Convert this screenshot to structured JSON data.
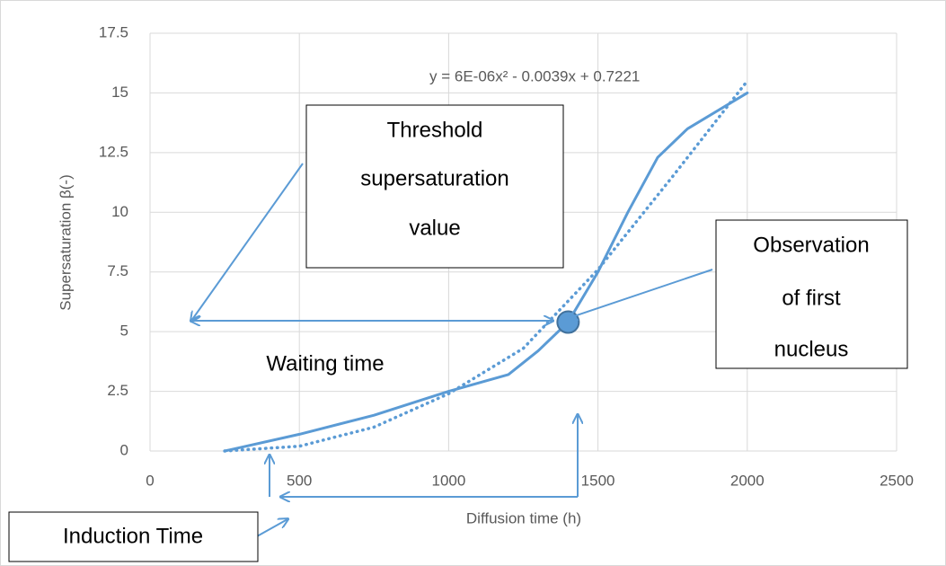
{
  "chart_data": {
    "type": "line",
    "xlabel": "Diffusion time (h)",
    "ylabel": "Supersaturation β(-)",
    "xlim": [
      0,
      2500
    ],
    "xticks": [
      0,
      500,
      1000,
      1500,
      2000,
      2500
    ],
    "ylim": [
      0,
      17.5
    ],
    "yticks": [
      0,
      2.5,
      5,
      7.5,
      10,
      12.5,
      15,
      17.5
    ],
    "grid": true,
    "series": [
      {
        "style": "solid",
        "color": "#5b9bd5",
        "x": [
          250,
          500,
          750,
          1000,
          1200,
          1300,
          1400,
          1500,
          1600,
          1700,
          1800,
          2000
        ],
        "values": [
          0,
          0.7,
          1.5,
          2.5,
          3.2,
          4.2,
          5.4,
          7.5,
          10,
          12.3,
          13.5,
          15
        ]
      },
      {
        "style": "dotted",
        "color": "#5b9bd5",
        "x": [
          250,
          500,
          750,
          1000,
          1250,
          1500,
          1750,
          2000
        ],
        "values": [
          0,
          0.2,
          1.0,
          2.4,
          4.3,
          7.6,
          11.5,
          15.5
        ]
      }
    ],
    "marker": {
      "x": 1400,
      "y": 5.4,
      "color": "#5b9bd5"
    },
    "annotations": {
      "equation": "y = 6E-06x² - 0.0039x + 0.7221",
      "threshold": [
        "Threshold",
        "supersaturation",
        "value"
      ],
      "observation": [
        "Observation",
        "of first",
        "nucleus"
      ],
      "waiting": "Waiting time",
      "induction": "Induction Time"
    }
  }
}
